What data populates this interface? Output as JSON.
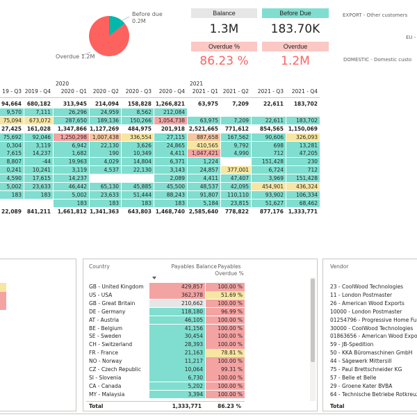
{
  "colors": {
    "teal": "#7fdecf",
    "red": "#f4a3a3",
    "pink": "#fbc8c4",
    "yellow": "#f7e6a1",
    "orange": "#f5c6a0",
    "redtxt": "#fd625e",
    "grey": "#e6e6e6"
  },
  "pie": {
    "slices": [
      {
        "label": "Before due",
        "value": 0.2,
        "value_label": "0.2M",
        "color": "#01b8aa"
      },
      {
        "label": "Overdue",
        "value": 1.2,
        "value_label": "1.2M",
        "color": "#fd625e"
      }
    ],
    "before_label": "Before due",
    "before_value": "0.2M",
    "overdue_label": "Overdue 1.2M"
  },
  "kpi": {
    "balance_title": "Balance",
    "balance_value": "1.3M",
    "before_due_title": "Before Due",
    "before_due_value": "183.70K",
    "overdue_pct_title": "Overdue %",
    "overdue_pct_value": "86.23 %",
    "overdue_title": "Overdue",
    "overdue_value": "1.2M"
  },
  "segments": {
    "export": "EXPORT - Other customers",
    "eu": "EU -",
    "domestic": "DOMESTIC - Domestic custo"
  },
  "matrix": {
    "years": [
      "2020",
      "2021"
    ],
    "columns": [
      "19 - Q3",
      "2019 - Q4",
      "2020 - Q1",
      "2020 - Q2",
      "2020 - Q3",
      "2020 - Q4",
      "2021 - Q1",
      "2021 - Q2",
      "2021 - Q3",
      "2021 - Q4"
    ],
    "rows": [
      {
        "bold": true,
        "cells": [
          {
            "v": "94,664"
          },
          {
            "v": "680,182"
          },
          {
            "v": "313,945"
          },
          {
            "v": "214,094"
          },
          {
            "v": "158,828"
          },
          {
            "v": "1,266,821"
          },
          {
            "v": "63,975"
          },
          {
            "v": "7,209"
          },
          {
            "v": "22,611"
          },
          {
            "v": "183,702"
          }
        ]
      },
      {
        "cells": [
          {
            "v": "9,570",
            "c": "teal"
          },
          {
            "v": "7,111",
            "c": "teal"
          },
          {
            "v": "26,296",
            "c": "teal"
          },
          {
            "v": "24,959",
            "c": "teal"
          },
          {
            "v": "8,562",
            "c": "teal"
          },
          {
            "v": "212,084",
            "c": "teal"
          },
          {
            "v": ""
          },
          {
            "v": ""
          },
          {
            "v": ""
          },
          {
            "v": ""
          }
        ]
      },
      {
        "cells": [
          {
            "v": "75,094",
            "c": "yellow"
          },
          {
            "v": "673,072",
            "c": "yellow"
          },
          {
            "v": "287,650",
            "c": "teal"
          },
          {
            "v": "189,136",
            "c": "teal"
          },
          {
            "v": "150,266",
            "c": "teal"
          },
          {
            "v": "1,054,738",
            "c": "red"
          },
          {
            "v": "63,975",
            "c": "teal"
          },
          {
            "v": "7,209",
            "c": "teal"
          },
          {
            "v": "22,611",
            "c": "teal"
          },
          {
            "v": "183,702",
            "c": "teal"
          }
        ]
      },
      {
        "bold": true,
        "cells": [
          {
            "v": "27,425"
          },
          {
            "v": "161,028"
          },
          {
            "v": "1,347,866"
          },
          {
            "v": "1,127,269"
          },
          {
            "v": "484,975"
          },
          {
            "v": "201,918"
          },
          {
            "v": "2,521,665"
          },
          {
            "v": "771,612"
          },
          {
            "v": "854,565"
          },
          {
            "v": "1,150,069"
          }
        ]
      },
      {
        "cells": [
          {
            "v": "75,692",
            "c": "teal"
          },
          {
            "v": "92,046",
            "c": "teal"
          },
          {
            "v": "1,250,298",
            "c": "red"
          },
          {
            "v": "1,007,438",
            "c": "orange"
          },
          {
            "v": "336,554",
            "c": "yellow"
          },
          {
            "v": "27,115",
            "c": "teal"
          },
          {
            "v": "887,658",
            "c": "orange"
          },
          {
            "v": "167,562",
            "c": "teal"
          },
          {
            "v": "90,606",
            "c": "teal"
          },
          {
            "v": "326,093",
            "c": "yellow"
          }
        ]
      },
      {
        "cells": [
          {
            "v": "0,304",
            "c": "teal"
          },
          {
            "v": "3,119",
            "c": "teal"
          },
          {
            "v": "6,942",
            "c": "teal"
          },
          {
            "v": "22,130",
            "c": "teal"
          },
          {
            "v": "3,626",
            "c": "teal"
          },
          {
            "v": "24,865",
            "c": "teal"
          },
          {
            "v": "410,565",
            "c": "yellow"
          },
          {
            "v": "9,792",
            "c": "teal"
          },
          {
            "v": "698",
            "c": "teal"
          },
          {
            "v": "13,281",
            "c": "teal"
          }
        ]
      },
      {
        "cells": [
          {
            "v": "7,615",
            "c": "teal"
          },
          {
            "v": "14,237",
            "c": "teal"
          },
          {
            "v": "1,682",
            "c": "teal"
          },
          {
            "v": "190",
            "c": "teal"
          },
          {
            "v": "10,349",
            "c": "teal"
          },
          {
            "v": "4,411",
            "c": "teal"
          },
          {
            "v": "1,047,421",
            "c": "red"
          },
          {
            "v": "4,990",
            "c": "teal"
          },
          {
            "v": "712",
            "c": "teal"
          },
          {
            "v": "47,205",
            "c": "teal"
          }
        ]
      },
      {
        "cells": [
          {
            "v": "8,807",
            "c": "teal"
          },
          {
            "v": "-44",
            "c": "teal"
          },
          {
            "v": "19,963",
            "c": "teal"
          },
          {
            "v": "4,029",
            "c": "teal"
          },
          {
            "v": "14,804",
            "c": "teal"
          },
          {
            "v": "6,371",
            "c": "teal"
          },
          {
            "v": "1,224",
            "c": "teal"
          },
          {
            "v": ""
          },
          {
            "v": "151,428",
            "c": "teal"
          },
          {
            "v": "230",
            "c": "teal"
          }
        ]
      },
      {
        "cells": [
          {
            "v": "0,241",
            "c": "teal"
          },
          {
            "v": "10,241",
            "c": "teal"
          },
          {
            "v": "3,119",
            "c": "teal"
          },
          {
            "v": "4,537",
            "c": "teal"
          },
          {
            "v": "22,130",
            "c": "teal"
          },
          {
            "v": "3,143",
            "c": "teal"
          },
          {
            "v": "24,857",
            "c": "teal"
          },
          {
            "v": "377,001",
            "c": "yellow"
          },
          {
            "v": "6,724",
            "c": "teal"
          },
          {
            "v": "712",
            "c": "teal"
          }
        ]
      },
      {
        "cells": [
          {
            "v": "4,590",
            "c": "teal"
          },
          {
            "v": "17,615",
            "c": "teal"
          },
          {
            "v": "14,237",
            "c": "teal"
          },
          {
            "v": ""
          },
          {
            "v": ""
          },
          {
            "v": "2,089",
            "c": "teal"
          },
          {
            "v": "4,411",
            "c": "teal"
          },
          {
            "v": "47,407",
            "c": "teal"
          },
          {
            "v": "3,969",
            "c": "teal"
          },
          {
            "v": "151,428",
            "c": "teal"
          }
        ]
      },
      {
        "cells": [
          {
            "v": "5,002",
            "c": "teal"
          },
          {
            "v": "23,633",
            "c": "teal"
          },
          {
            "v": "46,442",
            "c": "teal"
          },
          {
            "v": "65,130",
            "c": "teal"
          },
          {
            "v": "45,885",
            "c": "teal"
          },
          {
            "v": "45,500",
            "c": "teal"
          },
          {
            "v": "48,537",
            "c": "teal"
          },
          {
            "v": "42,095",
            "c": "teal"
          },
          {
            "v": "454,901",
            "c": "yellow"
          },
          {
            "v": "436,324",
            "c": "yellow"
          }
        ]
      },
      {
        "cells": [
          {
            "v": "183",
            "c": "teal"
          },
          {
            "v": "183",
            "c": "teal"
          },
          {
            "v": "5,002",
            "c": "teal"
          },
          {
            "v": "23,633",
            "c": "teal"
          },
          {
            "v": "51,444",
            "c": "teal"
          },
          {
            "v": "88,243",
            "c": "teal"
          },
          {
            "v": "91,807",
            "c": "teal"
          },
          {
            "v": "110,110",
            "c": "teal"
          },
          {
            "v": "93,902",
            "c": "teal"
          },
          {
            "v": "106,334",
            "c": "teal"
          }
        ]
      },
      {
        "cells": [
          {
            "v": ""
          },
          {
            "v": ""
          },
          {
            "v": "183",
            "c": "teal"
          },
          {
            "v": "183",
            "c": "teal"
          },
          {
            "v": "183",
            "c": "teal"
          },
          {
            "v": "183",
            "c": "teal"
          },
          {
            "v": "5,184",
            "c": "teal"
          },
          {
            "v": "23,815",
            "c": "teal"
          },
          {
            "v": "51,627",
            "c": "teal"
          },
          {
            "v": "68,462",
            "c": "teal"
          }
        ]
      },
      {
        "bold": true,
        "cells": [
          {
            "v": "22,089"
          },
          {
            "v": "841,211"
          },
          {
            "v": "1,661,812"
          },
          {
            "v": "1,341,363"
          },
          {
            "v": "643,803"
          },
          {
            "v": "1,468,740"
          },
          {
            "v": "2,585,640"
          },
          {
            "v": "778,822"
          },
          {
            "v": "877,176"
          },
          {
            "v": "1,333,771"
          }
        ]
      }
    ]
  },
  "country_table": {
    "headers": {
      "country": "Country",
      "balance": "Payables Balance",
      "overdue": "Payables Overdue %"
    },
    "rows": [
      {
        "country": "GB - United Kingdom",
        "balance": "429,857",
        "pct": "100.00 %",
        "bc": "red",
        "pc": "red"
      },
      {
        "country": "US - USA",
        "balance": "362,378",
        "pct": "51.69 %",
        "bc": "red",
        "pc": "yellow"
      },
      {
        "country": "GB - Great Britain",
        "balance": "210,662",
        "pct": "100.00 %",
        "bc": "grey",
        "pc": "red"
      },
      {
        "country": "DE - Germany",
        "balance": "118,180",
        "pct": "96.99 %",
        "bc": "teal",
        "pc": "red"
      },
      {
        "country": "AT - Austria",
        "balance": "46,105",
        "pct": "100.00 %",
        "bc": "teal",
        "pc": "red"
      },
      {
        "country": "BE - Belgium",
        "balance": "41,156",
        "pct": "100.00 %",
        "bc": "teal",
        "pc": "red"
      },
      {
        "country": "SE - Sweden",
        "balance": "30,454",
        "pct": "100.00 %",
        "bc": "teal",
        "pc": "red"
      },
      {
        "country": "CH - Switzerland",
        "balance": "28,393",
        "pct": "100.00 %",
        "bc": "teal",
        "pc": "red"
      },
      {
        "country": "FR - France",
        "balance": "21,163",
        "pct": "78.81 %",
        "bc": "teal",
        "pc": "yellow"
      },
      {
        "country": "NO - Norway",
        "balance": "11,217",
        "pct": "100.00 %",
        "bc": "teal",
        "pc": "red"
      },
      {
        "country": "CZ - Czech Republic",
        "balance": "10,064",
        "pct": "99.31 %",
        "bc": "teal",
        "pc": "red"
      },
      {
        "country": "SI - Slovenia",
        "balance": "6,730",
        "pct": "100.00 %",
        "bc": "teal",
        "pc": "red"
      },
      {
        "country": "CA - Canada",
        "balance": "5,202",
        "pct": "100.00 %",
        "bc": "teal",
        "pc": "red"
      },
      {
        "country": "MY - Malaysia",
        "balance": "3,394",
        "pct": "100.00 %",
        "bc": "teal",
        "pc": "red"
      }
    ],
    "total_label": "Total",
    "total_balance": "1,333,771",
    "total_pct": "86.23 %"
  },
  "vendor_table": {
    "header": "Vendor",
    "rows": [
      "23 - CoolWood Technologies",
      "11 - London Postmaster",
      "26 - American Wood Exports",
      "10000 - London Postmaster",
      "01254796 - Progressive Home Fur",
      "30000 - CoolWood Technologies",
      "01863656 - American Wood Expor",
      "59 - JB-Spedition",
      "50 - KKA Büromaschinen GmbH",
      "44 - Sägewerk Mittersill",
      "75 - Paul Brettschneider KG",
      "57 - Belle et Belle",
      "29 - Groene Kater BVBA",
      "64 - Technische Betriebe Rotkreuz"
    ],
    "total_label": "Total"
  }
}
